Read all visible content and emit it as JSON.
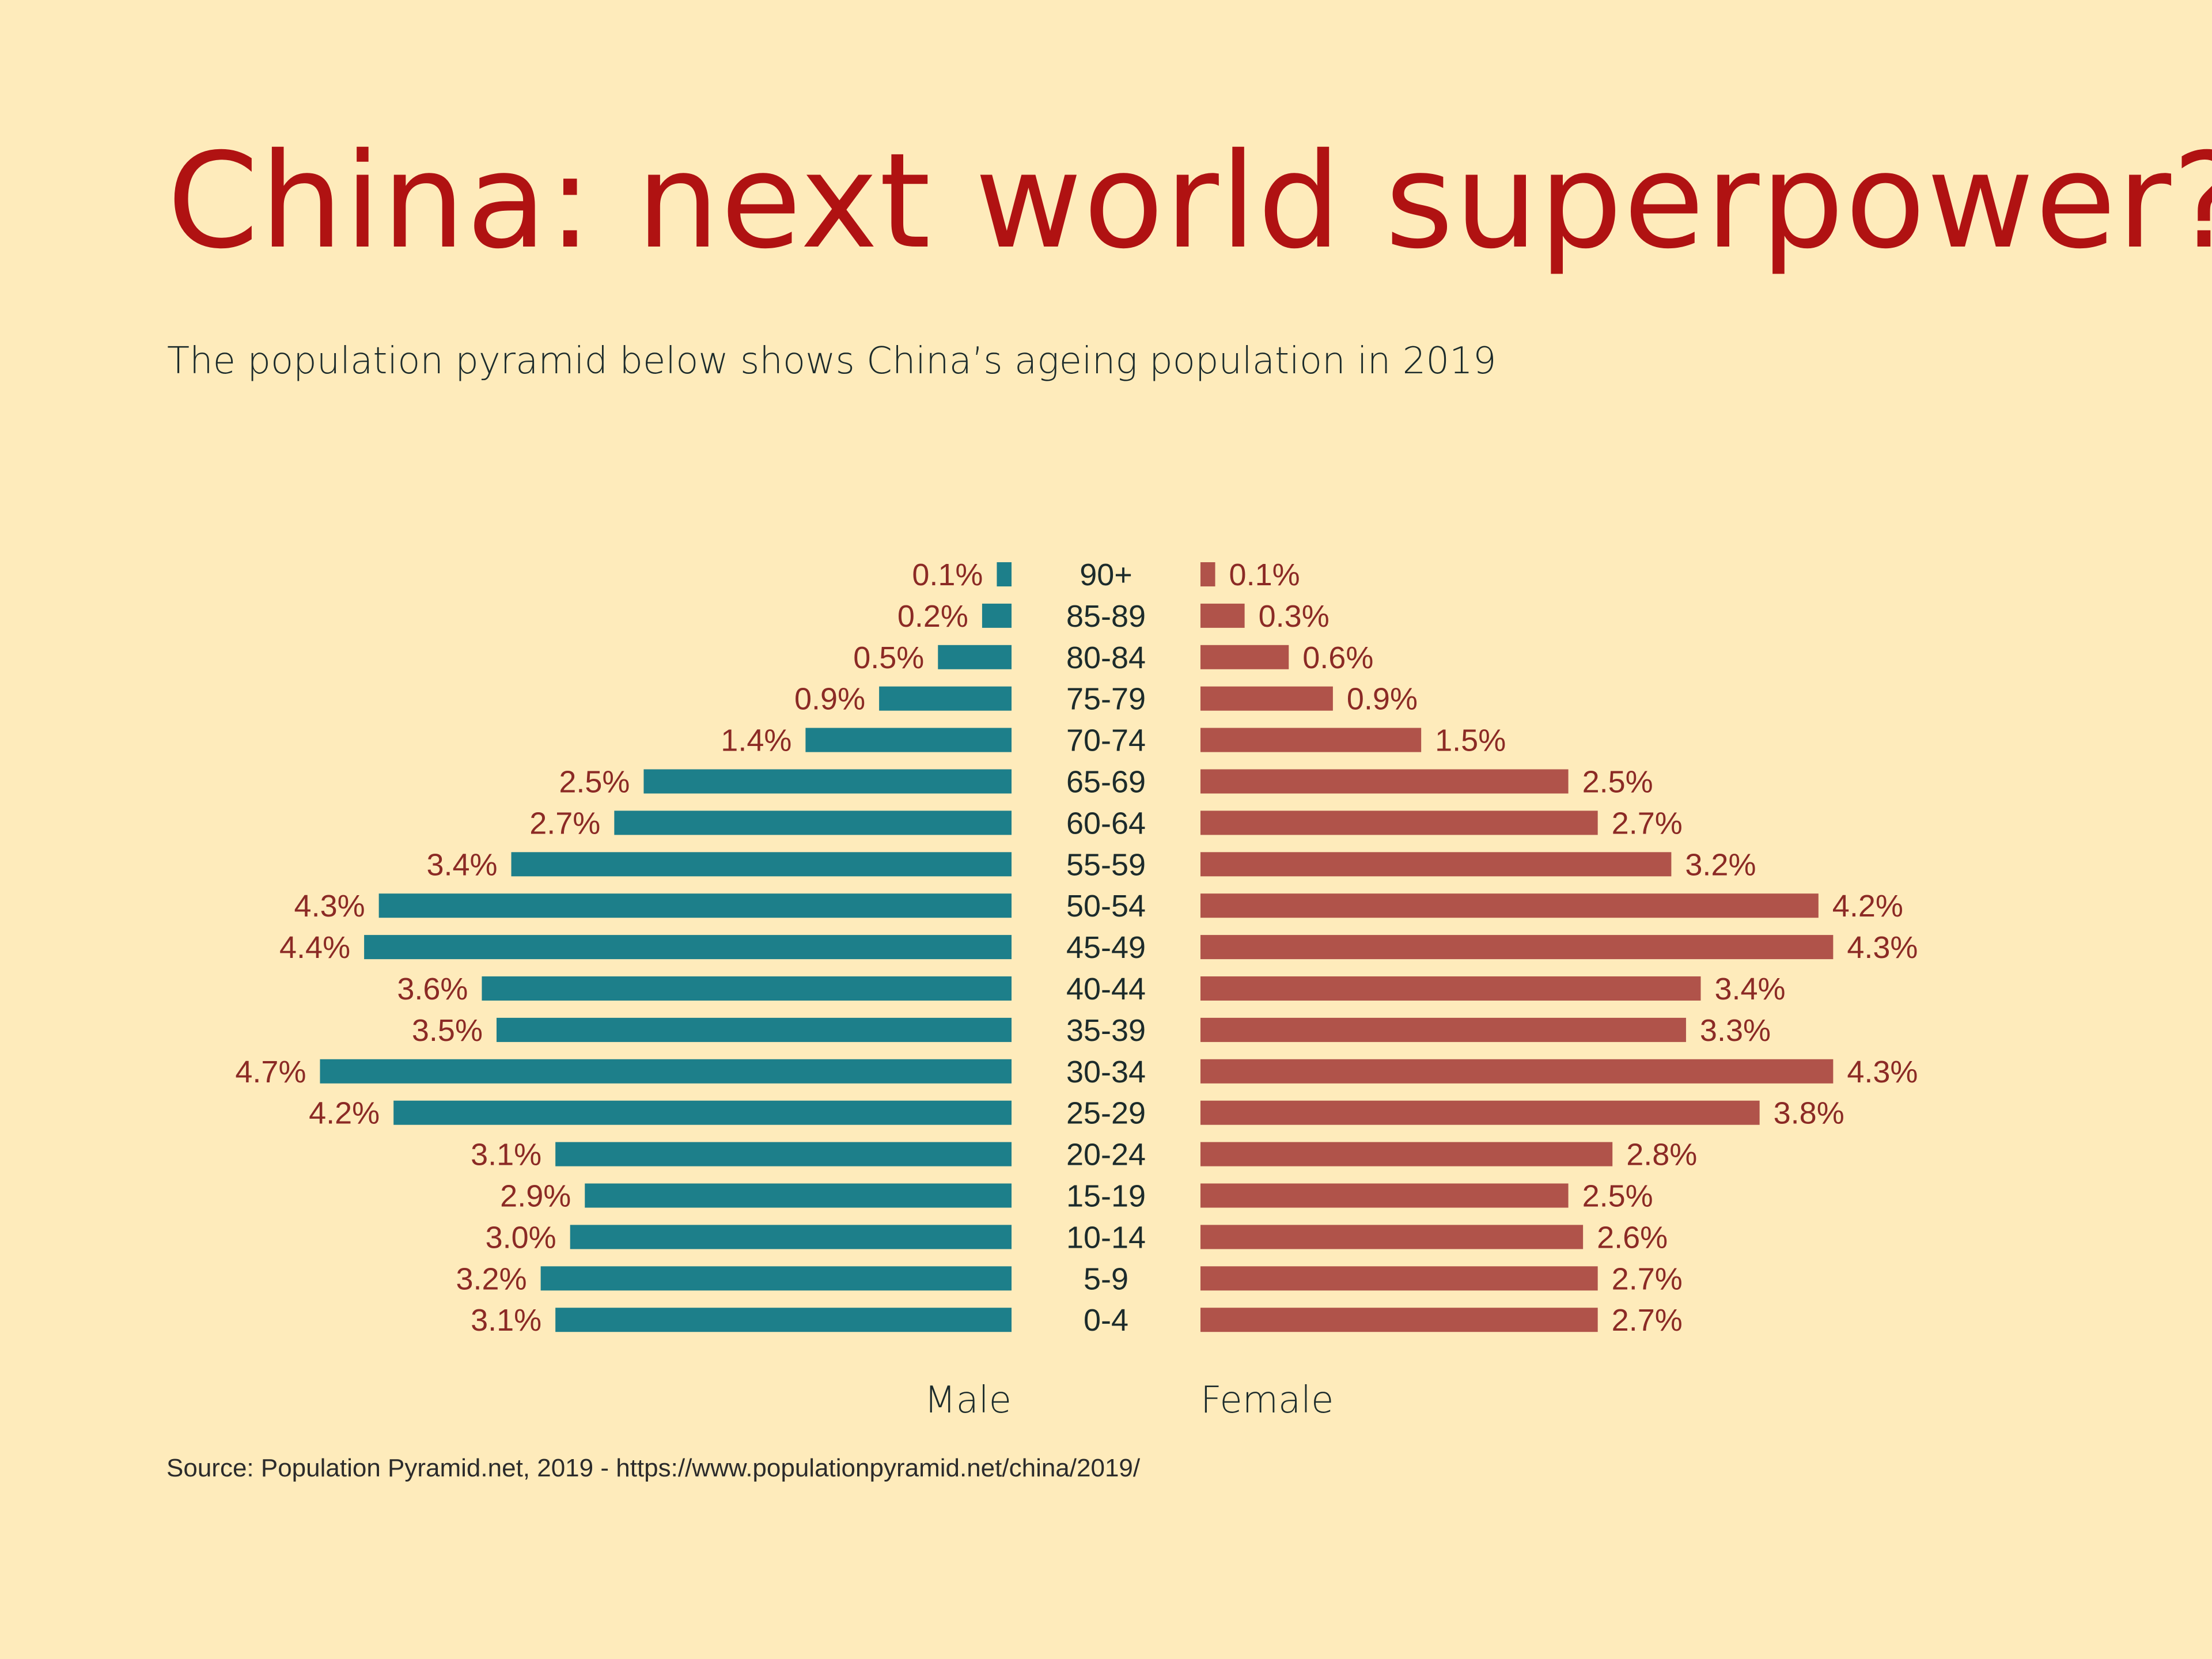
{
  "title": "China: next world superpower?",
  "subtitle": "The population pyramid below shows China’s ageing population in 2019",
  "source": "Source: Population Pyramid.net, 2019 - https://www.populationpyramid.net/china/2019/",
  "colors": {
    "background": "#feebbb",
    "title": "#b01212",
    "male": "#1d7f8a",
    "female": "#b0534a",
    "value_label": "#8b2a25",
    "age_label": "#1c2b2b"
  },
  "chart_data": {
    "type": "bar",
    "orientation": "horizontal",
    "subtype": "population-pyramid",
    "categories": [
      "90+",
      "85-89",
      "80-84",
      "75-79",
      "70-74",
      "65-69",
      "60-64",
      "55-59",
      "50-54",
      "45-49",
      "40-44",
      "35-39",
      "30-34",
      "25-29",
      "20-24",
      "15-19",
      "10-14",
      "5-9",
      "0-4"
    ],
    "series": [
      {
        "name": "Male",
        "values": [
          0.1,
          0.2,
          0.5,
          0.9,
          1.4,
          2.5,
          2.7,
          3.4,
          4.3,
          4.4,
          3.6,
          3.5,
          4.7,
          4.2,
          3.1,
          2.9,
          3.0,
          3.2,
          3.1
        ],
        "labels": [
          "0.1%",
          "0.2%",
          "0.5%",
          "0.9%",
          "1.4%",
          "2.5%",
          "2.7%",
          "3.4%",
          "4.3%",
          "4.4%",
          "3.6%",
          "3.5%",
          "4.7%",
          "4.2%",
          "3.1%",
          "2.9%",
          "3.0%",
          "3.2%",
          "3.1%"
        ]
      },
      {
        "name": "Female",
        "values": [
          0.1,
          0.3,
          0.6,
          0.9,
          1.5,
          2.5,
          2.7,
          3.2,
          4.2,
          4.3,
          3.4,
          3.3,
          4.3,
          3.8,
          2.8,
          2.5,
          2.6,
          2.7,
          2.7
        ],
        "labels": [
          "0.1%",
          "0.3%",
          "0.6%",
          "0.9%",
          "1.5%",
          "2.5%",
          "2.7%",
          "3.2%",
          "4.2%",
          "4.3%",
          "3.4%",
          "3.3%",
          "4.3%",
          "3.8%",
          "2.8%",
          "2.5%",
          "2.6%",
          "2.7%",
          "2.7%"
        ]
      }
    ],
    "unit": "%",
    "grid": false,
    "axes_visible": false
  }
}
